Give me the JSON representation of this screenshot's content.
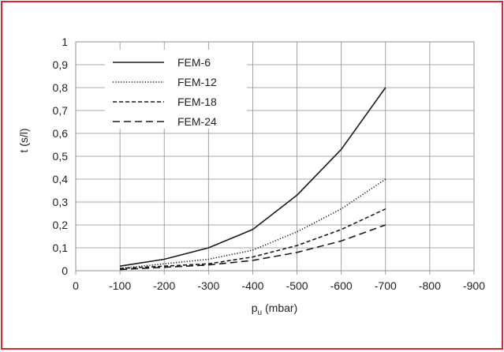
{
  "chart_data": {
    "type": "line",
    "xlabel": "p",
    "xlabel_subscript": "u",
    "xlabel_unit": " (mbar)",
    "ylabel": "t (s/l)",
    "xlim": [
      0,
      -900
    ],
    "ylim": [
      0,
      1
    ],
    "x_ticks": [
      "0",
      "-100",
      "-200",
      "-300",
      "-400",
      "-500",
      "-600",
      "-700",
      "-800",
      "-900"
    ],
    "y_ticks": [
      "0",
      "0,1",
      "0,2",
      "0,3",
      "0,4",
      "0,5",
      "0,6",
      "0,7",
      "0,8",
      "0,9",
      "1"
    ],
    "grid": true,
    "legend_position": "top-left",
    "x": [
      -100,
      -200,
      -300,
      -400,
      -500,
      -600,
      -700
    ],
    "series": [
      {
        "name": "FEM-6",
        "dash": "solid",
        "color": "#1a1a1a",
        "values": [
          0.02,
          0.05,
          0.1,
          0.18,
          0.33,
          0.53,
          0.8
        ]
      },
      {
        "name": "FEM-12",
        "dash": "dotted",
        "color": "#1a1a1a",
        "values": [
          0.01,
          0.03,
          0.05,
          0.09,
          0.17,
          0.27,
          0.4
        ]
      },
      {
        "name": "FEM-18",
        "dash": "dashed",
        "color": "#1a1a1a",
        "values": [
          0.01,
          0.02,
          0.03,
          0.06,
          0.11,
          0.18,
          0.27
        ]
      },
      {
        "name": "FEM-24",
        "dash": "longdash",
        "color": "#1a1a1a",
        "values": [
          0.005,
          0.015,
          0.025,
          0.045,
          0.08,
          0.13,
          0.2
        ]
      }
    ]
  }
}
